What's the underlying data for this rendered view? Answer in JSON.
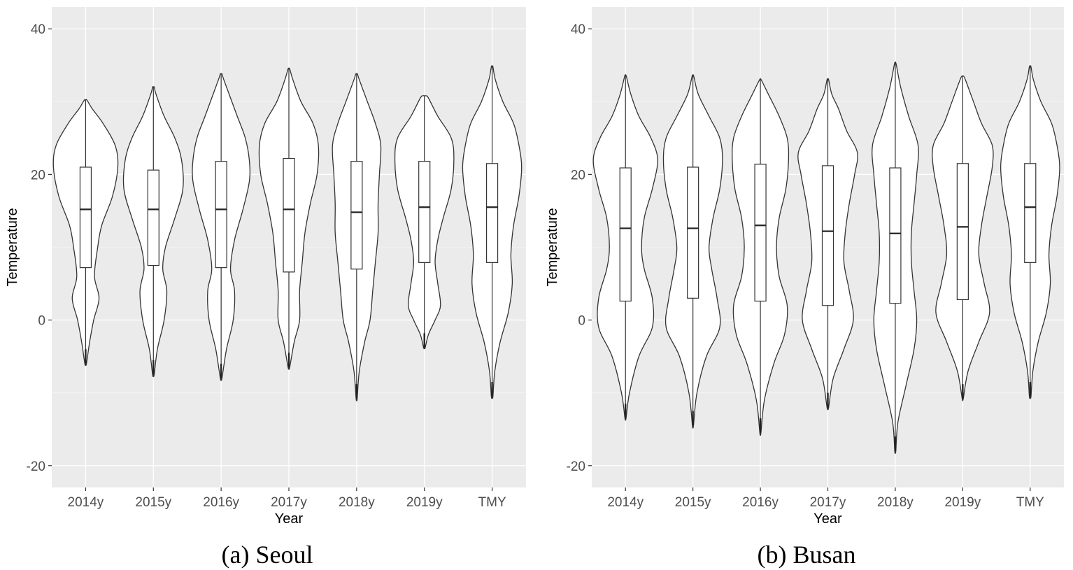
{
  "chart_data": [
    {
      "type": "violin",
      "caption": "(a) Seoul",
      "xlabel": "Year",
      "ylabel": "Temperature",
      "ylim": [
        -23,
        43
      ],
      "yticks": [
        -20,
        0,
        20,
        40
      ],
      "categories": [
        "2014y",
        "2015y",
        "2016y",
        "2017y",
        "2018y",
        "2019y",
        "TMY"
      ],
      "series": [
        {
          "name": "2014y",
          "min": -6,
          "q1": 7.2,
          "median": 15.2,
          "q3": 21.0,
          "max": 30.2,
          "density": [
            [
              -6,
              0.3
            ],
            [
              -3,
              1.5
            ],
            [
              0,
              3
            ],
            [
              3,
              5
            ],
            [
              6,
              3.3
            ],
            [
              10,
              4.5
            ],
            [
              13,
              6
            ],
            [
              17,
              10
            ],
            [
              21,
              12
            ],
            [
              24,
              11
            ],
            [
              27,
              6.5
            ],
            [
              29,
              2.5
            ],
            [
              30.2,
              0.5
            ]
          ]
        },
        {
          "name": "2015y",
          "min": -7.5,
          "q1": 7.5,
          "median": 15.2,
          "q3": 20.6,
          "max": 32,
          "density": [
            [
              -7.5,
              0.3
            ],
            [
              -4,
              1.5
            ],
            [
              0,
              4
            ],
            [
              4,
              5
            ],
            [
              7,
              3.5
            ],
            [
              10,
              4.5
            ],
            [
              14,
              8
            ],
            [
              18,
              11
            ],
            [
              22,
              10.5
            ],
            [
              25,
              8
            ],
            [
              28,
              4
            ],
            [
              31,
              1
            ],
            [
              32,
              0.3
            ]
          ]
        },
        {
          "name": "2016y",
          "min": -8,
          "q1": 7.2,
          "median": 15.2,
          "q3": 21.8,
          "max": 33.8,
          "density": [
            [
              -8,
              0.3
            ],
            [
              -4,
              2
            ],
            [
              0,
              4.5
            ],
            [
              4,
              5
            ],
            [
              7,
              3.5
            ],
            [
              11,
              5
            ],
            [
              15,
              8
            ],
            [
              19,
              10.5
            ],
            [
              22,
              10.5
            ],
            [
              25,
              9
            ],
            [
              28,
              6
            ],
            [
              31,
              3
            ],
            [
              33,
              1
            ],
            [
              33.8,
              0.3
            ]
          ]
        },
        {
          "name": "2017y",
          "min": -6.5,
          "q1": 6.6,
          "median": 15.2,
          "q3": 22.2,
          "max": 34.5,
          "density": [
            [
              -6.5,
              0.3
            ],
            [
              -3,
              2
            ],
            [
              0,
              4
            ],
            [
              4,
              4
            ],
            [
              8,
              5
            ],
            [
              12,
              6
            ],
            [
              16,
              8
            ],
            [
              20,
              10.5
            ],
            [
              24,
              11
            ],
            [
              27,
              9
            ],
            [
              30,
              4.5
            ],
            [
              33,
              1.5
            ],
            [
              34.5,
              0.3
            ]
          ]
        },
        {
          "name": "2018y",
          "min": -10.8,
          "q1": 7.0,
          "median": 14.8,
          "q3": 21.8,
          "max": 33.8,
          "density": [
            [
              -10.8,
              0.2
            ],
            [
              -7,
              1
            ],
            [
              -3,
              3
            ],
            [
              0,
              5
            ],
            [
              4,
              6
            ],
            [
              8,
              7
            ],
            [
              12,
              8
            ],
            [
              16,
              8
            ],
            [
              20,
              8.5
            ],
            [
              24,
              9
            ],
            [
              27,
              7
            ],
            [
              30,
              4
            ],
            [
              33,
              1
            ],
            [
              33.8,
              0.3
            ]
          ]
        },
        {
          "name": "2019y",
          "min": -3.8,
          "q1": 7.9,
          "median": 15.5,
          "q3": 21.8,
          "max": 30.8,
          "density": [
            [
              -3.8,
              0.3
            ],
            [
              -2,
              1.5
            ],
            [
              0,
              4
            ],
            [
              2,
              6
            ],
            [
              5,
              5
            ],
            [
              8,
              4
            ],
            [
              11,
              5
            ],
            [
              14,
              7
            ],
            [
              18,
              10
            ],
            [
              22,
              11
            ],
            [
              25,
              10
            ],
            [
              28,
              5
            ],
            [
              30.5,
              1.5
            ],
            [
              30.8,
              0.5
            ]
          ]
        },
        {
          "name": "TMY",
          "min": -10.5,
          "q1": 7.9,
          "median": 15.5,
          "q3": 21.5,
          "max": 34.8,
          "density": [
            [
              -10.5,
              0.3
            ],
            [
              -7,
              1
            ],
            [
              -3,
              3
            ],
            [
              1,
              6
            ],
            [
              5,
              7.5
            ],
            [
              9,
              7
            ],
            [
              13,
              8
            ],
            [
              17,
              10
            ],
            [
              21,
              11
            ],
            [
              24,
              10
            ],
            [
              27,
              8
            ],
            [
              30,
              4
            ],
            [
              33,
              1.2
            ],
            [
              34.8,
              0.3
            ]
          ]
        }
      ]
    },
    {
      "type": "violin",
      "caption": "(b) Busan",
      "xlabel": "Year",
      "ylabel": "Temperature",
      "ylim": [
        -23,
        43
      ],
      "yticks": [
        -20,
        0,
        20,
        40
      ],
      "categories": [
        "2014y",
        "2015y",
        "2016y",
        "2017y",
        "2018y",
        "2019y",
        "TMY"
      ],
      "series": [
        {
          "name": "2014y",
          "min": -13.5,
          "q1": 2.6,
          "median": 12.6,
          "q3": 20.9,
          "max": 33.5,
          "density": [
            [
              -13.5,
              0.2
            ],
            [
              -10,
              1.5
            ],
            [
              -5,
              5
            ],
            [
              -1,
              10
            ],
            [
              3,
              10
            ],
            [
              7,
              7
            ],
            [
              10,
              6
            ],
            [
              14,
              7
            ],
            [
              18,
              10
            ],
            [
              22,
              12
            ],
            [
              25,
              9.5
            ],
            [
              28,
              5
            ],
            [
              31,
              2
            ],
            [
              33.5,
              0.3
            ]
          ]
        },
        {
          "name": "2015y",
          "min": -14.5,
          "q1": 3.0,
          "median": 12.6,
          "q3": 21.0,
          "max": 33.5,
          "density": [
            [
              -14.5,
              0.2
            ],
            [
              -10,
              1.5
            ],
            [
              -5,
              5
            ],
            [
              -1,
              10
            ],
            [
              3,
              9
            ],
            [
              7,
              7
            ],
            [
              10,
              6
            ],
            [
              14,
              7.5
            ],
            [
              18,
              10
            ],
            [
              22,
              11
            ],
            [
              25,
              10
            ],
            [
              28,
              6
            ],
            [
              31,
              2
            ],
            [
              33.5,
              0.3
            ]
          ]
        },
        {
          "name": "2016y",
          "min": -15.5,
          "q1": 2.6,
          "median": 13.0,
          "q3": 21.4,
          "max": 33,
          "density": [
            [
              -15.5,
              0.2
            ],
            [
              -11,
              1.5
            ],
            [
              -6,
              5
            ],
            [
              -2,
              9
            ],
            [
              2,
              10
            ],
            [
              6,
              7
            ],
            [
              10,
              6
            ],
            [
              14,
              7
            ],
            [
              18,
              9.5
            ],
            [
              22,
              10.5
            ],
            [
              25,
              10
            ],
            [
              28,
              7
            ],
            [
              31,
              3
            ],
            [
              33,
              0.3
            ]
          ]
        },
        {
          "name": "2017y",
          "min": -12,
          "q1": 2.0,
          "median": 12.2,
          "q3": 21.2,
          "max": 33,
          "density": [
            [
              -12,
              0.3
            ],
            [
              -8,
              2
            ],
            [
              -4,
              6
            ],
            [
              0,
              9.5
            ],
            [
              4,
              8
            ],
            [
              8,
              6
            ],
            [
              12,
              6.5
            ],
            [
              16,
              8
            ],
            [
              20,
              10
            ],
            [
              23,
              11
            ],
            [
              26,
              7
            ],
            [
              29,
              4
            ],
            [
              31,
              1.5
            ],
            [
              33,
              0.3
            ]
          ]
        },
        {
          "name": "2018y",
          "min": -18,
          "q1": 2.3,
          "median": 11.9,
          "q3": 20.9,
          "max": 35.2,
          "density": [
            [
              -18,
              0.2
            ],
            [
              -14,
              1
            ],
            [
              -9,
              4
            ],
            [
              -4,
              7
            ],
            [
              0,
              8
            ],
            [
              4,
              7
            ],
            [
              8,
              6
            ],
            [
              12,
              6
            ],
            [
              16,
              7
            ],
            [
              20,
              8
            ],
            [
              24,
              8.5
            ],
            [
              28,
              5
            ],
            [
              32,
              2
            ],
            [
              35.2,
              0.3
            ]
          ]
        },
        {
          "name": "2019y",
          "min": -10.8,
          "q1": 2.8,
          "median": 12.8,
          "q3": 21.5,
          "max": 33.5,
          "density": [
            [
              -10.8,
              0.2
            ],
            [
              -7,
              2
            ],
            [
              -3,
              6
            ],
            [
              1,
              10
            ],
            [
              5,
              8
            ],
            [
              9,
              6
            ],
            [
              13,
              7
            ],
            [
              17,
              9
            ],
            [
              21,
              11
            ],
            [
              24,
              11
            ],
            [
              27,
              7
            ],
            [
              30,
              4
            ],
            [
              33,
              1
            ],
            [
              33.5,
              0.3
            ]
          ]
        },
        {
          "name": "TMY",
          "min": -10.5,
          "q1": 7.9,
          "median": 15.5,
          "q3": 21.5,
          "max": 34.8,
          "density": [
            [
              -10.5,
              0.3
            ],
            [
              -7,
              1
            ],
            [
              -3,
              3
            ],
            [
              1,
              6
            ],
            [
              5,
              7.5
            ],
            [
              9,
              7
            ],
            [
              13,
              8
            ],
            [
              17,
              10
            ],
            [
              21,
              11
            ],
            [
              24,
              10
            ],
            [
              27,
              8
            ],
            [
              30,
              4
            ],
            [
              33,
              1.2
            ],
            [
              34.8,
              0.3
            ]
          ]
        }
      ]
    }
  ]
}
